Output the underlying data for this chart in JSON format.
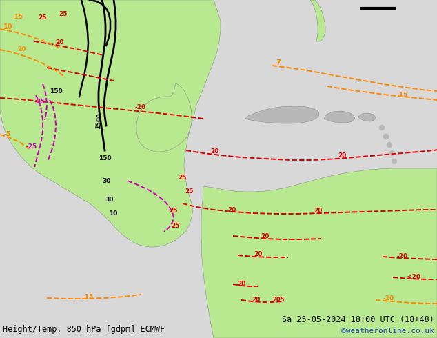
{
  "title_left": "Height/Temp. 850 hPa [gdpm] ECMWF",
  "title_right": "Sa 25-05-2024 18:00 UTC (18+48)",
  "watermark": "©weatheronline.co.uk",
  "bg_color": "#d8d8d8",
  "land_green": "#b8e890",
  "land_gray": "#b8b8b8",
  "ocean_color": "#d8d8d8",
  "fig_width": 6.34,
  "fig_height": 4.9,
  "dpi": 100
}
